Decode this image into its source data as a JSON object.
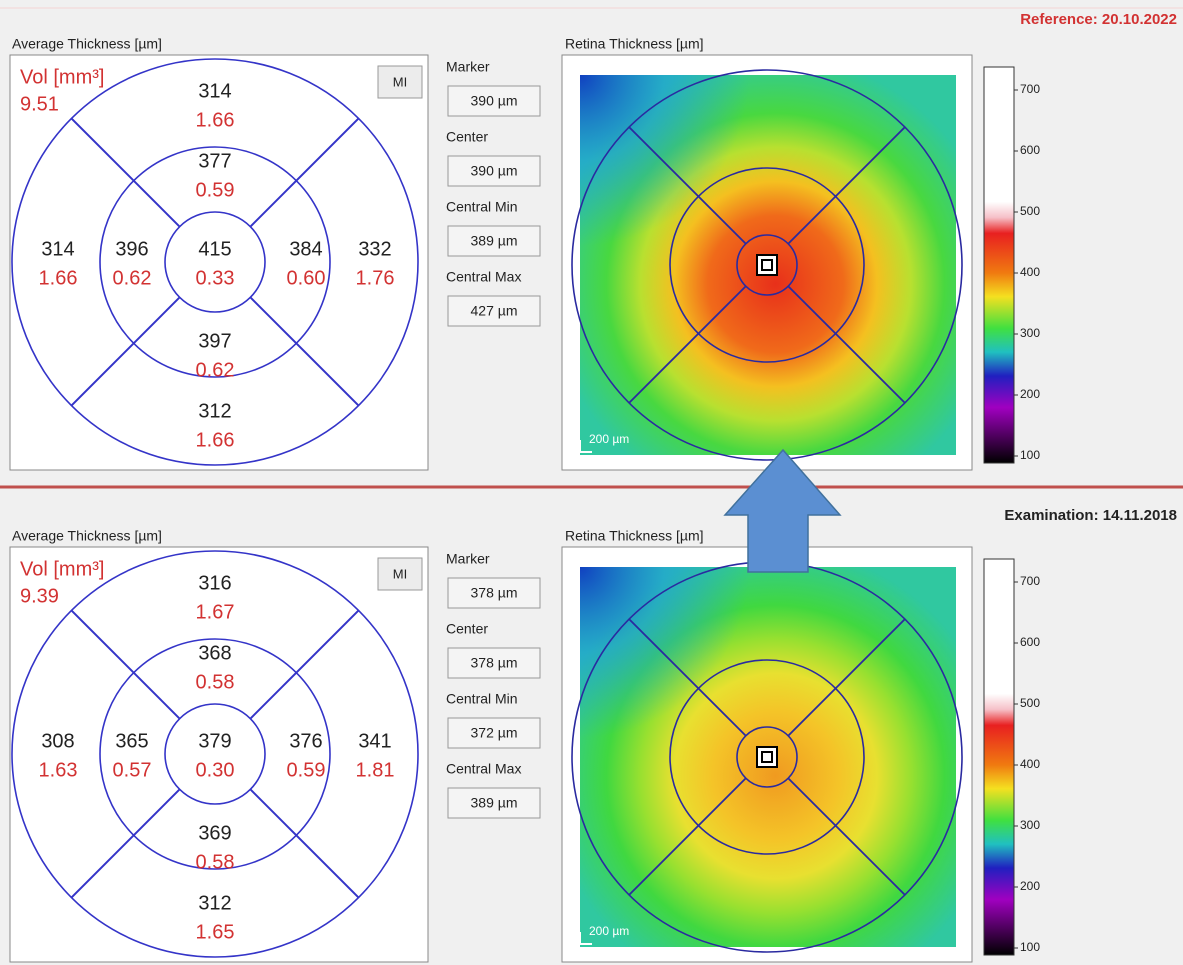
{
  "panels": [
    {
      "header": "Reference: 20.10.2022",
      "etdrs_title": "Average Thickness [µm]",
      "volume_label": "Vol [mm³]",
      "volume": "9.51",
      "button": "MI",
      "sectors": {
        "outer_top": {
          "thickness": "314",
          "volume": "1.66"
        },
        "inner_top": {
          "thickness": "377",
          "volume": "0.59"
        },
        "outer_left": {
          "thickness": "314",
          "volume": "1.66"
        },
        "inner_left": {
          "thickness": "396",
          "volume": "0.62"
        },
        "center": {
          "thickness": "415",
          "volume": "0.33"
        },
        "inner_right": {
          "thickness": "384",
          "volume": "0.60"
        },
        "outer_right": {
          "thickness": "332",
          "volume": "1.76"
        },
        "inner_bottom": {
          "thickness": "397",
          "volume": "0.62"
        },
        "outer_bottom": {
          "thickness": "312",
          "volume": "1.66"
        }
      },
      "fields": [
        {
          "label": "Marker",
          "value": "390 µm"
        },
        {
          "label": "Center",
          "value": "390 µm"
        },
        {
          "label": "Central Min",
          "value": "389 µm"
        },
        {
          "label": "Central Max",
          "value": "427 µm"
        }
      ],
      "map_title": "Retina Thickness [µm]",
      "scale_bar": "200 µm",
      "colorbar_ticks": [
        "700",
        "600",
        "500",
        "400",
        "300",
        "200",
        "100"
      ]
    },
    {
      "header": "Examination: 14.11.2018",
      "etdrs_title": "Average Thickness [µm]",
      "volume_label": "Vol [mm³]",
      "volume": "9.39",
      "button": "MI",
      "sectors": {
        "outer_top": {
          "thickness": "316",
          "volume": "1.67"
        },
        "inner_top": {
          "thickness": "368",
          "volume": "0.58"
        },
        "outer_left": {
          "thickness": "308",
          "volume": "1.63"
        },
        "inner_left": {
          "thickness": "365",
          "volume": "0.57"
        },
        "center": {
          "thickness": "379",
          "volume": "0.30"
        },
        "inner_right": {
          "thickness": "376",
          "volume": "0.59"
        },
        "outer_right": {
          "thickness": "341",
          "volume": "1.81"
        },
        "inner_bottom": {
          "thickness": "369",
          "volume": "0.58"
        },
        "outer_bottom": {
          "thickness": "312",
          "volume": "1.65"
        }
      },
      "fields": [
        {
          "label": "Marker",
          "value": "378 µm"
        },
        {
          "label": "Center",
          "value": "378 µm"
        },
        {
          "label": "Central Min",
          "value": "372 µm"
        },
        {
          "label": "Central Max",
          "value": "389 µm"
        }
      ],
      "map_title": "Retina Thickness [µm]",
      "scale_bar": "200 µm",
      "colorbar_ticks": [
        "700",
        "600",
        "500",
        "400",
        "300",
        "200",
        "100"
      ]
    }
  ]
}
